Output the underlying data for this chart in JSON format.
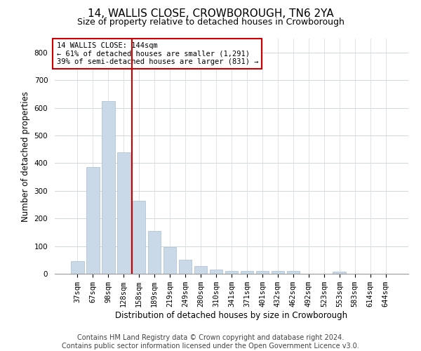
{
  "title": "14, WALLIS CLOSE, CROWBOROUGH, TN6 2YA",
  "subtitle": "Size of property relative to detached houses in Crowborough",
  "xlabel": "Distribution of detached houses by size in Crowborough",
  "ylabel": "Number of detached properties",
  "footer1": "Contains HM Land Registry data © Crown copyright and database right 2024.",
  "footer2": "Contains public sector information licensed under the Open Government Licence v3.0.",
  "annotation_line1": "14 WALLIS CLOSE: 144sqm",
  "annotation_line2": "← 61% of detached houses are smaller (1,291)",
  "annotation_line3": "39% of semi-detached houses are larger (831) →",
  "bar_labels": [
    "37sqm",
    "67sqm",
    "98sqm",
    "128sqm",
    "158sqm",
    "189sqm",
    "219sqm",
    "249sqm",
    "280sqm",
    "310sqm",
    "341sqm",
    "371sqm",
    "401sqm",
    "432sqm",
    "462sqm",
    "492sqm",
    "523sqm",
    "553sqm",
    "583sqm",
    "614sqm",
    "644sqm"
  ],
  "bar_values": [
    45,
    385,
    625,
    440,
    265,
    155,
    97,
    52,
    27,
    15,
    10,
    10,
    10,
    10,
    10,
    0,
    0,
    7,
    0,
    0,
    0
  ],
  "bar_color": "#c9d9e8",
  "bar_edgecolor": "#aabcce",
  "grid_color": "#d0d8e0",
  "vline_x": 3.53,
  "vline_color": "#cc0000",
  "ylim": [
    0,
    850
  ],
  "yticks": [
    0,
    100,
    200,
    300,
    400,
    500,
    600,
    700,
    800
  ],
  "annotation_box_color": "#cc0000",
  "background_color": "#ffffff",
  "title_fontsize": 11,
  "subtitle_fontsize": 9,
  "axis_label_fontsize": 8.5,
  "tick_fontsize": 7.5,
  "annotation_fontsize": 7.5,
  "footer_fontsize": 7
}
